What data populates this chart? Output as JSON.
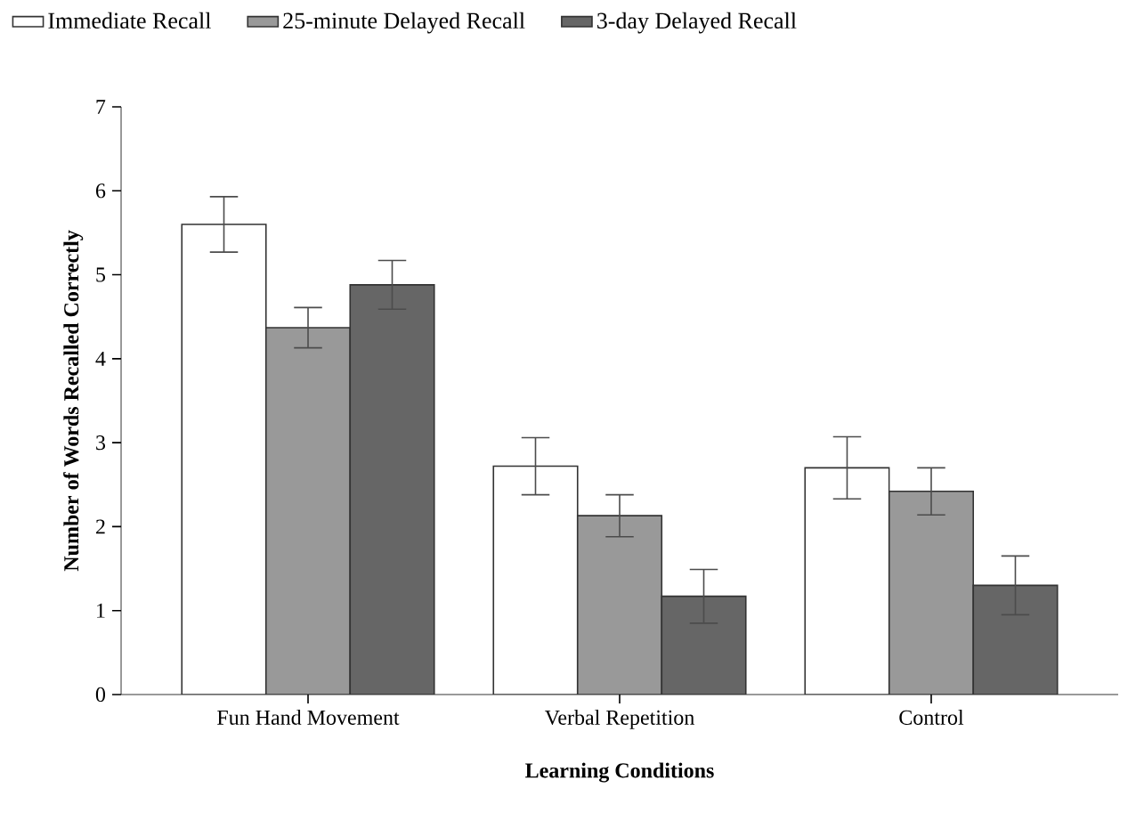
{
  "chart_data": {
    "type": "bar",
    "xlabel": "Learning Conditions",
    "ylabel": "Number of Words Recalled Correctly",
    "categories": [
      "Fun Hand Movement",
      "Verbal Repetition",
      "Control"
    ],
    "series": [
      {
        "name": "Immediate Recall",
        "color": "#ffffff",
        "values": [
          5.6,
          2.72,
          2.7
        ],
        "errors": [
          0.33,
          0.34,
          0.37
        ]
      },
      {
        "name": "25-minute Delayed Recall",
        "color": "#999999",
        "values": [
          4.37,
          2.13,
          2.42
        ],
        "errors": [
          0.24,
          0.25,
          0.28
        ]
      },
      {
        "name": "3-day Delayed Recall",
        "color": "#666666",
        "values": [
          4.88,
          1.17,
          1.3
        ],
        "errors": [
          0.29,
          0.32,
          0.35
        ]
      }
    ],
    "ylim": [
      0,
      7
    ],
    "yticks": [
      0,
      1,
      2,
      3,
      4,
      5,
      6,
      7
    ],
    "legend": "top left",
    "grid": false
  }
}
